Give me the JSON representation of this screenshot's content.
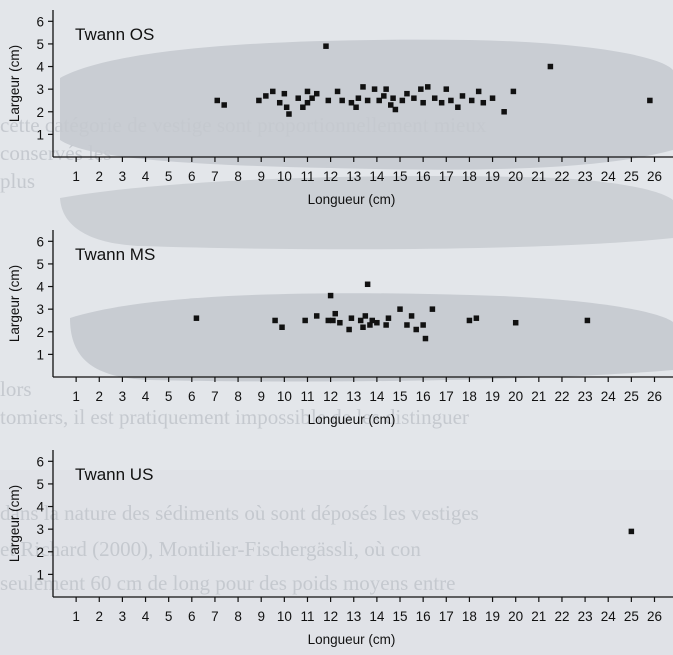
{
  "chart_data": [
    {
      "type": "scatter",
      "title": "Twann OS",
      "xlabel": "Longueur (cm)",
      "ylabel": "Largeur (cm)",
      "xlim": [
        0,
        26.8
      ],
      "ylim": [
        0,
        6.5
      ],
      "x_ticks": [
        1,
        2,
        3,
        4,
        5,
        6,
        7,
        8,
        9,
        10,
        11,
        12,
        13,
        14,
        15,
        16,
        17,
        18,
        19,
        20,
        21,
        22,
        23,
        24,
        25,
        26
      ],
      "y_ticks": [
        1,
        2,
        3,
        4,
        5,
        6
      ],
      "grid": false,
      "points": [
        [
          7.1,
          2.5
        ],
        [
          7.4,
          2.3
        ],
        [
          8.9,
          2.5
        ],
        [
          9.2,
          2.7
        ],
        [
          9.5,
          2.9
        ],
        [
          9.8,
          2.4
        ],
        [
          10.0,
          2.8
        ],
        [
          10.1,
          2.2
        ],
        [
          10.2,
          1.9
        ],
        [
          10.6,
          2.6
        ],
        [
          10.8,
          2.2
        ],
        [
          11.0,
          2.4
        ],
        [
          11.0,
          2.9
        ],
        [
          11.2,
          2.6
        ],
        [
          11.4,
          2.8
        ],
        [
          11.8,
          4.9
        ],
        [
          11.9,
          2.5
        ],
        [
          12.3,
          2.9
        ],
        [
          12.5,
          2.5
        ],
        [
          12.9,
          2.4
        ],
        [
          13.1,
          2.2
        ],
        [
          13.2,
          2.6
        ],
        [
          13.4,
          3.1
        ],
        [
          13.6,
          2.5
        ],
        [
          13.9,
          3.0
        ],
        [
          14.1,
          2.5
        ],
        [
          14.3,
          2.7
        ],
        [
          14.4,
          3.0
        ],
        [
          14.6,
          2.3
        ],
        [
          14.7,
          2.6
        ],
        [
          14.8,
          2.1
        ],
        [
          15.1,
          2.5
        ],
        [
          15.3,
          2.8
        ],
        [
          15.6,
          2.6
        ],
        [
          15.9,
          3.0
        ],
        [
          16.0,
          2.4
        ],
        [
          16.2,
          3.1
        ],
        [
          16.5,
          2.6
        ],
        [
          16.8,
          2.4
        ],
        [
          17.0,
          3.0
        ],
        [
          17.2,
          2.5
        ],
        [
          17.5,
          2.2
        ],
        [
          17.7,
          2.7
        ],
        [
          18.1,
          2.5
        ],
        [
          18.4,
          2.9
        ],
        [
          18.6,
          2.4
        ],
        [
          19.0,
          2.6
        ],
        [
          19.5,
          2.0
        ],
        [
          19.9,
          2.9
        ],
        [
          21.5,
          4.0
        ],
        [
          25.8,
          2.5
        ]
      ]
    },
    {
      "type": "scatter",
      "title": "Twann MS",
      "xlabel": "Longueur (cm)",
      "ylabel": "Largeur (cm)",
      "xlim": [
        0,
        26.8
      ],
      "ylim": [
        0,
        6.5
      ],
      "x_ticks": [
        1,
        2,
        3,
        4,
        5,
        6,
        7,
        8,
        9,
        10,
        11,
        12,
        13,
        14,
        15,
        16,
        17,
        18,
        19,
        20,
        21,
        22,
        23,
        24,
        25,
        26
      ],
      "y_ticks": [
        1,
        2,
        3,
        4,
        5,
        6
      ],
      "grid": false,
      "points": [
        [
          6.2,
          2.6
        ],
        [
          9.6,
          2.5
        ],
        [
          9.9,
          2.2
        ],
        [
          10.9,
          2.5
        ],
        [
          11.4,
          2.7
        ],
        [
          11.9,
          2.5
        ],
        [
          12.0,
          3.6
        ],
        [
          12.1,
          2.5
        ],
        [
          12.2,
          2.8
        ],
        [
          12.4,
          2.4
        ],
        [
          12.8,
          2.1
        ],
        [
          12.9,
          2.6
        ],
        [
          13.3,
          2.5
        ],
        [
          13.4,
          2.2
        ],
        [
          13.5,
          2.7
        ],
        [
          13.6,
          4.1
        ],
        [
          13.7,
          2.3
        ],
        [
          13.8,
          2.5
        ],
        [
          14.0,
          2.4
        ],
        [
          14.4,
          2.3
        ],
        [
          14.5,
          2.6
        ],
        [
          15.0,
          3.0
        ],
        [
          15.3,
          2.3
        ],
        [
          15.5,
          2.7
        ],
        [
          15.7,
          2.1
        ],
        [
          16.0,
          2.3
        ],
        [
          16.1,
          1.7
        ],
        [
          16.4,
          3.0
        ],
        [
          18.0,
          2.5
        ],
        [
          18.3,
          2.6
        ],
        [
          20.0,
          2.4
        ],
        [
          23.1,
          2.5
        ]
      ]
    },
    {
      "type": "scatter",
      "title": "Twann US",
      "xlabel": "Longueur (cm)",
      "ylabel": "Largeur (cm)",
      "xlim": [
        0,
        26.8
      ],
      "ylim": [
        0,
        6.5
      ],
      "x_ticks": [
        1,
        2,
        3,
        4,
        5,
        6,
        7,
        8,
        9,
        10,
        11,
        12,
        13,
        14,
        15,
        16,
        17,
        18,
        19,
        20,
        21,
        22,
        23,
        24,
        25,
        26
      ],
      "y_ticks": [
        1,
        2,
        3,
        4,
        5,
        6
      ],
      "grid": false,
      "points": [
        [
          25.0,
          2.9
        ]
      ]
    }
  ],
  "background": {
    "color": "#e3e6ea",
    "stone_color": "#c4c8ce",
    "ghost_text_color": "#c5c9cf"
  },
  "marker_color": "#111111"
}
